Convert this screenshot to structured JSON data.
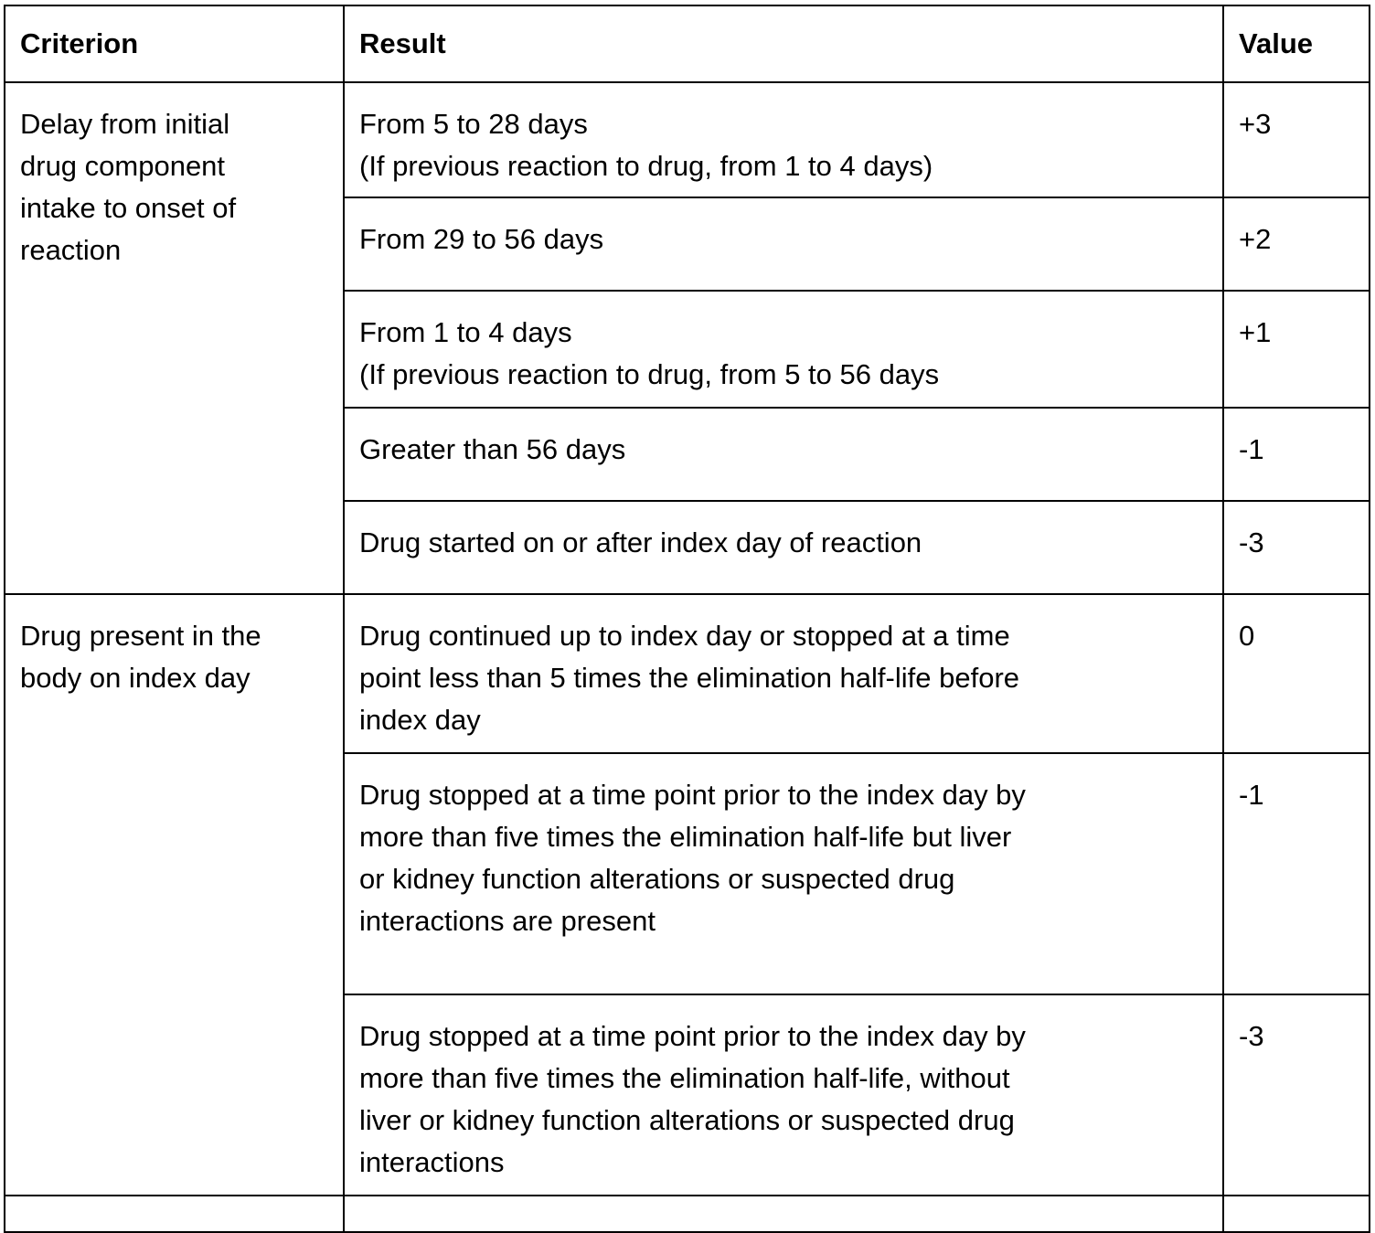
{
  "headers": [
    "Criterion",
    "Result",
    "Value"
  ],
  "groups": [
    {
      "criterion": [
        "Delay from initial",
        "drug component",
        "intake to onset of",
        "reaction"
      ],
      "rows": [
        {
          "result": [
            "From 5 to 28 days",
            "(If previous reaction to drug, from 1 to 4 days)"
          ],
          "value": "+3"
        },
        {
          "result": [
            "From 29 to 56 days"
          ],
          "value": "+2"
        },
        {
          "result": [
            "From 1 to 4 days",
            "(If previous reaction to drug, from 5 to 56 days"
          ],
          "value": "+1"
        },
        {
          "result": [
            "Greater than 56 days"
          ],
          "value": "-1"
        },
        {
          "result": [
            "Drug started on or after index day of reaction"
          ],
          "value": "-3"
        }
      ]
    },
    {
      "criterion": [
        "Drug present in the",
        "body on index day"
      ],
      "rows": [
        {
          "result": [
            "Drug continued up to index day or stopped at a time",
            "point less than 5 times the elimination half-life before",
            "index day"
          ],
          "value": "0"
        },
        {
          "result": [
            "Drug stopped at a time point prior to the index day by",
            "more than five times the elimination half-life but liver",
            "or kidney function alterations or suspected drug",
            "interactions are present"
          ],
          "value": "-1"
        },
        {
          "result": [
            "Drug stopped at a time point prior to the index day by",
            "more than five times the elimination half-life, without",
            "liver or kidney function alterations or suspected drug",
            "interactions"
          ],
          "value": "-3"
        }
      ]
    }
  ]
}
